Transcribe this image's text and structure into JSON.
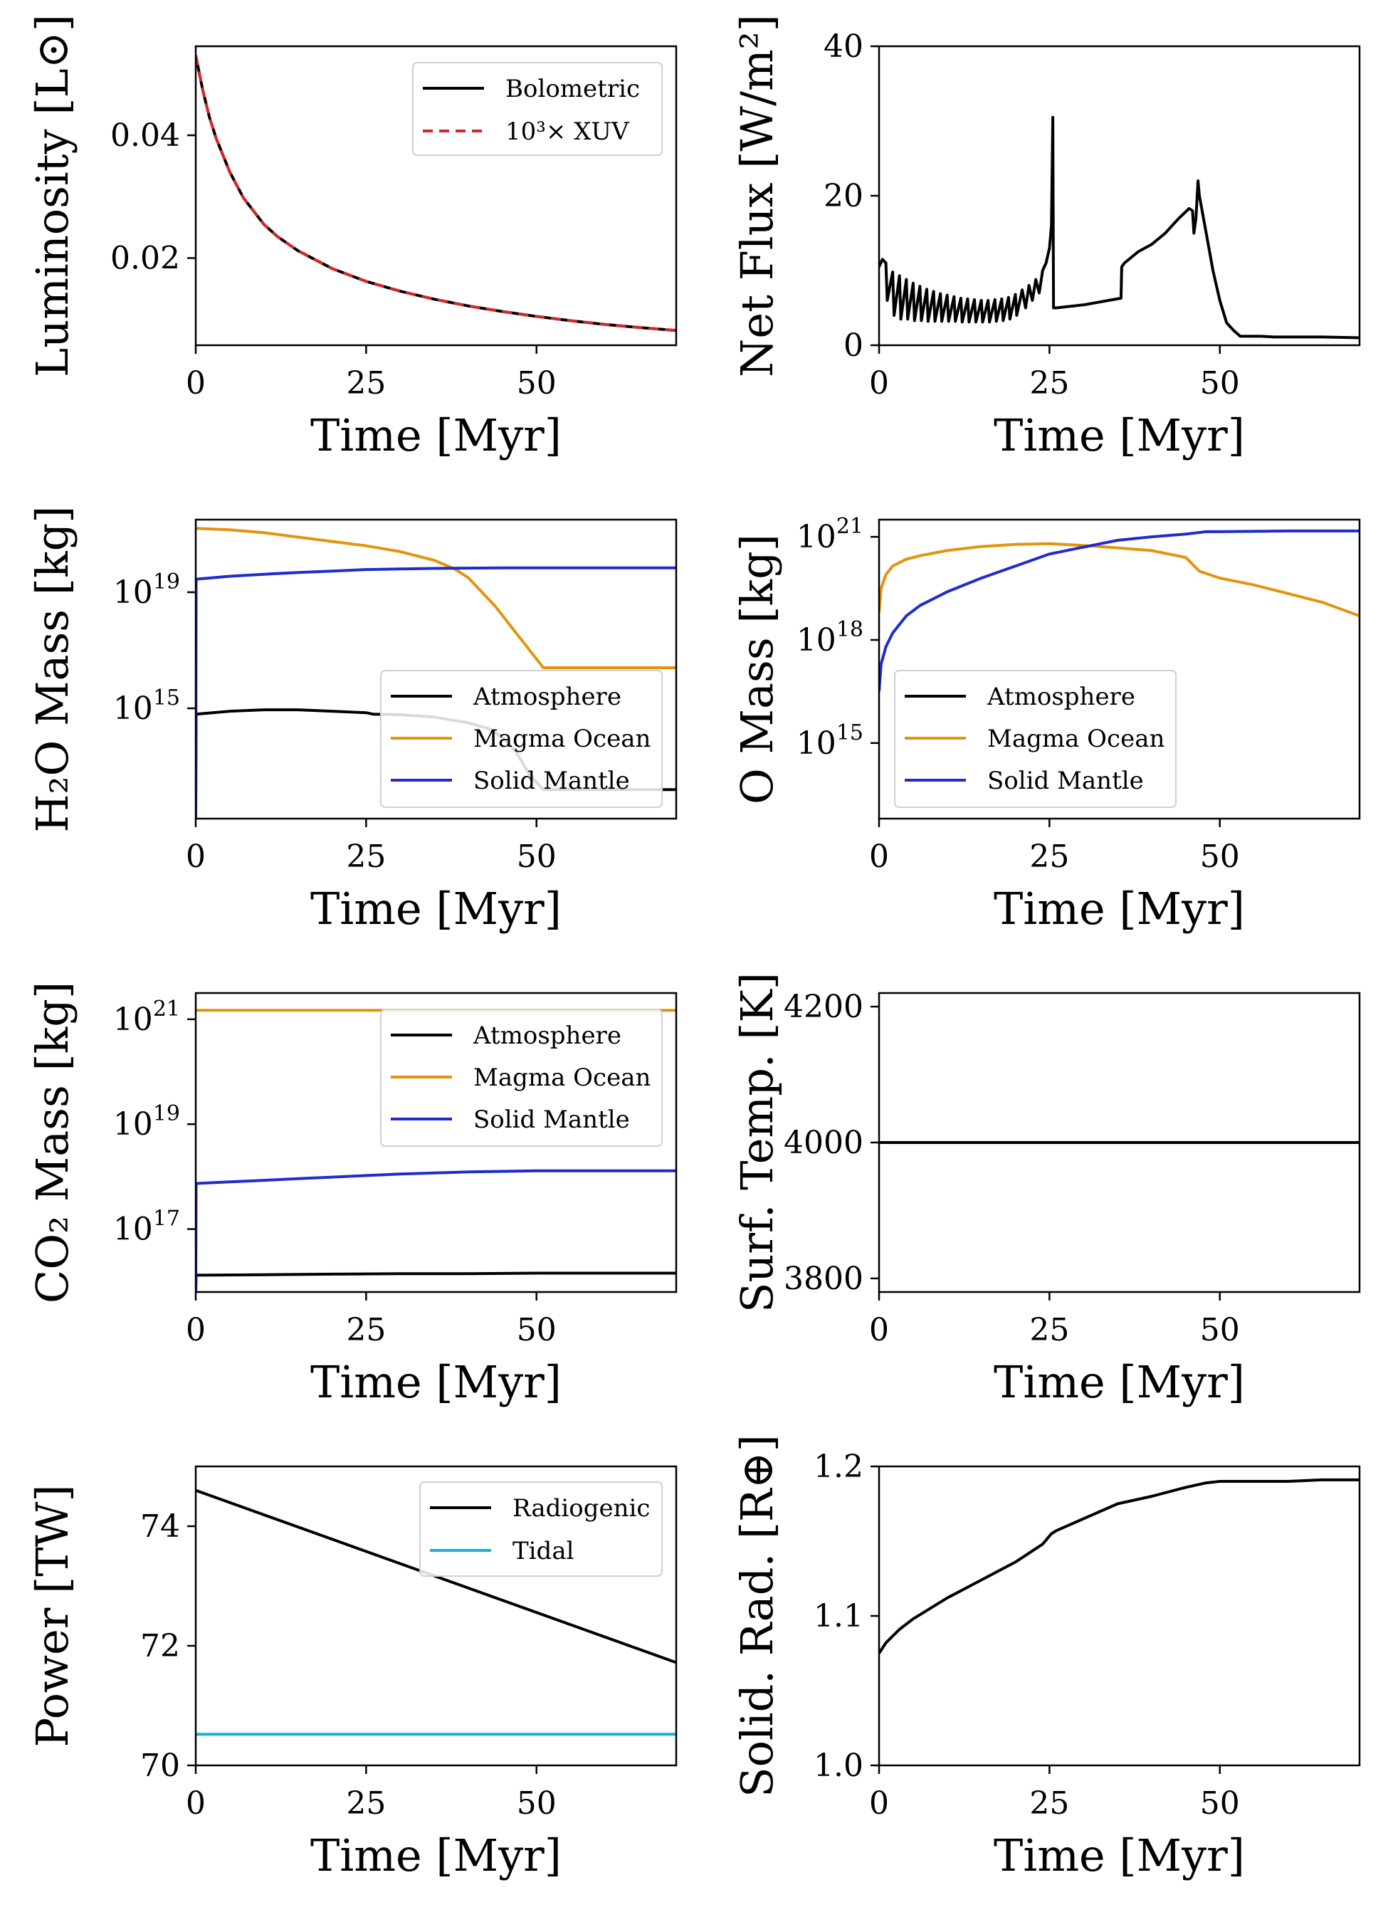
{
  "colors": {
    "black": "#000000",
    "red": "#d62728",
    "orange": "#e3940c",
    "blue": "#1f2ccd",
    "cyan": "#17b3d6"
  },
  "chart_data": [
    {
      "id": "luminosity",
      "type": "line",
      "xlabel": "Time [Myr]",
      "ylabel": "Luminosity [L⊙]",
      "xlim": [
        0,
        70.5
      ],
      "ylim": [
        0.0058,
        0.0545
      ],
      "xticks": [
        {
          "v": 0,
          "label": "0"
        },
        {
          "v": 25,
          "label": "25"
        },
        {
          "v": 50,
          "label": "50"
        }
      ],
      "yticks": [
        {
          "v": 0.02,
          "label": "0.02"
        },
        {
          "v": 0.04,
          "label": "0.04"
        }
      ],
      "legend": "top-right",
      "series": [
        {
          "name": "Bolometric",
          "color": "black",
          "dash": "",
          "width": 4,
          "x": [
            0,
            1,
            2,
            3,
            5,
            7,
            10,
            12,
            15,
            20,
            25,
            30,
            35,
            40,
            45,
            50,
            55,
            60,
            65,
            70.5
          ],
          "y": [
            0.053,
            0.0475,
            0.043,
            0.0395,
            0.034,
            0.0298,
            0.0255,
            0.0235,
            0.0212,
            0.0183,
            0.0162,
            0.0146,
            0.0133,
            0.0122,
            0.0113,
            0.0105,
            0.0098,
            0.0092,
            0.0087,
            0.0082
          ]
        },
        {
          "name": "10³× XUV",
          "color": "red",
          "dash": "14 9",
          "width": 4,
          "x": [
            0,
            1,
            2,
            3,
            5,
            7,
            10,
            12,
            15,
            20,
            25,
            30,
            35,
            40,
            45,
            50,
            55,
            60,
            65,
            70.5
          ],
          "y": [
            0.053,
            0.0475,
            0.043,
            0.0395,
            0.034,
            0.0298,
            0.0255,
            0.0235,
            0.0212,
            0.0183,
            0.0162,
            0.0146,
            0.0133,
            0.0122,
            0.0113,
            0.0105,
            0.0098,
            0.0092,
            0.0087,
            0.0082
          ]
        }
      ]
    },
    {
      "id": "netflux",
      "type": "line",
      "xlabel": "Time [Myr]",
      "ylabel": "Net Flux [W/m²]",
      "xlim": [
        0,
        70.5
      ],
      "ylim": [
        0,
        40
      ],
      "xticks": [
        {
          "v": 0,
          "label": "0"
        },
        {
          "v": 25,
          "label": "25"
        },
        {
          "v": 50,
          "label": "50"
        }
      ],
      "yticks": [
        {
          "v": 0,
          "label": "0"
        },
        {
          "v": 20,
          "label": "20"
        },
        {
          "v": 40,
          "label": "40"
        }
      ],
      "series": [
        {
          "name": "",
          "color": "black",
          "dash": "",
          "width": 4,
          "x": [
            0,
            0.5,
            1,
            1.2,
            2,
            2.2,
            3,
            3.2,
            4,
            4.2,
            5,
            5.2,
            6,
            6.2,
            7,
            7.2,
            8,
            8.2,
            9,
            9.2,
            10,
            10.2,
            11,
            11.2,
            12,
            12.2,
            13,
            13.2,
            14,
            14.2,
            15,
            15.2,
            16,
            16.2,
            17,
            17.2,
            18,
            18.2,
            19,
            19.2,
            20,
            20.2,
            21,
            21.5,
            22,
            22.5,
            23,
            23.5,
            24,
            24.5,
            25.0,
            25.3,
            25.5,
            25.6,
            26,
            30,
            35.5,
            35.6,
            36,
            38,
            40,
            42,
            44,
            45.5,
            46,
            46.2,
            46.5,
            46.8,
            47,
            48,
            49,
            50,
            51,
            52,
            53,
            54,
            56,
            58,
            60,
            65,
            70.5
          ],
          "y": [
            10.5,
            11.5,
            11,
            6,
            9.8,
            4,
            9.3,
            3.5,
            8.8,
            3.5,
            8.3,
            3.3,
            7.9,
            3.3,
            7.5,
            3.2,
            7.2,
            3.2,
            6.9,
            3.2,
            6.7,
            3.2,
            6.5,
            3.2,
            6.3,
            3.1,
            6.2,
            3.1,
            6.1,
            3.1,
            6.0,
            3.1,
            6.0,
            3.1,
            6.1,
            3.2,
            6.2,
            3.3,
            6.4,
            3.5,
            6.8,
            4,
            7.4,
            5,
            8,
            6,
            8.8,
            7,
            10,
            11,
            13,
            16,
            30.5,
            5,
            5,
            5.4,
            6.3,
            10.5,
            11,
            12.5,
            13.5,
            15,
            17,
            18.3,
            18,
            15,
            17,
            22,
            20,
            15,
            10,
            6,
            3,
            2,
            1.2,
            1.2,
            1.2,
            1.1,
            1.1,
            1.1,
            1.0
          ]
        }
      ]
    },
    {
      "id": "h2o",
      "type": "line",
      "xlabel": "Time [Myr]",
      "ylabel": "H₂O Mass [kg]",
      "yscale": "log",
      "xlim": [
        0,
        70.5
      ],
      "ylim": [
        11.2,
        21.5
      ],
      "xticks": [
        {
          "v": 0,
          "label": "0"
        },
        {
          "v": 25,
          "label": "25"
        },
        {
          "v": 50,
          "label": "50"
        }
      ],
      "yticks": [
        {
          "v": 15,
          "label": "10",
          "exp": "15"
        },
        {
          "v": 19,
          "label": "10",
          "exp": "19"
        }
      ],
      "legend": "lower-right",
      "series": [
        {
          "name": "Atmosphere",
          "color": "black",
          "dash": "",
          "width": 4,
          "x": [
            0,
            0.05,
            5,
            10,
            15,
            20,
            25,
            26,
            30,
            35,
            40,
            43,
            45,
            47,
            49,
            51,
            55,
            60,
            65,
            70.5
          ],
          "y": [
            11.2,
            14.8,
            14.9,
            14.95,
            14.95,
            14.9,
            14.85,
            14.8,
            14.78,
            14.7,
            14.5,
            14.3,
            14.0,
            13.5,
            12.7,
            12.2,
            12.2,
            12.2,
            12.2,
            12.2
          ]
        },
        {
          "name": "Magma Ocean",
          "color": "orange",
          "dash": "",
          "width": 4,
          "x": [
            0,
            5,
            10,
            15,
            20,
            25,
            30,
            35,
            38,
            40,
            42,
            44,
            46,
            48,
            50,
            51,
            55,
            60,
            65,
            70.5
          ],
          "y": [
            21.2,
            21.15,
            21.05,
            20.9,
            20.75,
            20.6,
            20.4,
            20.1,
            19.8,
            19.5,
            19.0,
            18.5,
            17.9,
            17.3,
            16.7,
            16.4,
            16.4,
            16.4,
            16.4,
            16.4
          ]
        },
        {
          "name": "Solid Mantle",
          "color": "blue",
          "dash": "",
          "width": 4,
          "x": [
            0,
            0.05,
            5,
            10,
            15,
            20,
            25,
            30,
            35,
            40,
            45,
            50,
            55,
            60,
            65,
            70.5
          ],
          "y": [
            11.2,
            19.45,
            19.55,
            19.62,
            19.68,
            19.73,
            19.78,
            19.8,
            19.82,
            19.83,
            19.84,
            19.84,
            19.84,
            19.84,
            19.84,
            19.84
          ]
        }
      ]
    },
    {
      "id": "omass",
      "type": "line",
      "xlabel": "Time [Myr]",
      "ylabel": "O Mass [kg]",
      "yscale": "log",
      "xlim": [
        0,
        70.5
      ],
      "ylim": [
        12.8,
        21.5
      ],
      "xticks": [
        {
          "v": 0,
          "label": "0"
        },
        {
          "v": 25,
          "label": "25"
        },
        {
          "v": 50,
          "label": "50"
        }
      ],
      "yticks": [
        {
          "v": 15,
          "label": "10",
          "exp": "15"
        },
        {
          "v": 18,
          "label": "10",
          "exp": "18"
        },
        {
          "v": 21,
          "label": "10",
          "exp": "21"
        }
      ],
      "legend": "lower-left",
      "series": [
        {
          "name": "Atmosphere",
          "color": "black",
          "dash": "",
          "width": 4,
          "x": [],
          "y": []
        },
        {
          "name": "Magma Ocean",
          "color": "orange",
          "dash": "",
          "width": 4,
          "x": [
            0,
            0.3,
            1,
            2,
            4,
            6,
            10,
            15,
            20,
            25,
            30,
            35,
            40,
            45,
            47,
            50,
            55,
            60,
            65,
            70.5
          ],
          "y": [
            18.8,
            19.5,
            19.9,
            20.15,
            20.35,
            20.45,
            20.6,
            20.72,
            20.78,
            20.8,
            20.75,
            20.68,
            20.6,
            20.4,
            20.0,
            19.8,
            19.6,
            19.35,
            19.1,
            18.7
          ]
        },
        {
          "name": "Solid Mantle",
          "color": "blue",
          "dash": "",
          "width": 4,
          "x": [
            0,
            0.3,
            1,
            2,
            4,
            6,
            10,
            15,
            20,
            25,
            30,
            35,
            40,
            45,
            48,
            50,
            55,
            60,
            65,
            70.5
          ],
          "y": [
            16.5,
            17.3,
            17.8,
            18.2,
            18.7,
            19.0,
            19.4,
            19.8,
            20.15,
            20.5,
            20.7,
            20.9,
            21.0,
            21.08,
            21.15,
            21.15,
            21.16,
            21.17,
            21.17,
            21.17
          ]
        }
      ]
    },
    {
      "id": "co2",
      "type": "line",
      "xlabel": "Time [Myr]",
      "ylabel": "CO₂ Mass [kg]",
      "yscale": "log",
      "xlim": [
        0,
        70.5
      ],
      "ylim": [
        15.8,
        21.5
      ],
      "xticks": [
        {
          "v": 0,
          "label": "0"
        },
        {
          "v": 25,
          "label": "25"
        },
        {
          "v": 50,
          "label": "50"
        }
      ],
      "yticks": [
        {
          "v": 17,
          "label": "10",
          "exp": "17"
        },
        {
          "v": 19,
          "label": "10",
          "exp": "19"
        },
        {
          "v": 21,
          "label": "10",
          "exp": "21"
        }
      ],
      "legend": "top-right",
      "series": [
        {
          "name": "Atmosphere",
          "color": "black",
          "dash": "",
          "width": 4,
          "x": [
            0,
            0.05,
            10,
            20,
            30,
            40,
            50,
            60,
            70.5
          ],
          "y": [
            15.8,
            16.12,
            16.13,
            16.14,
            16.15,
            16.15,
            16.16,
            16.16,
            16.16
          ]
        },
        {
          "name": "Magma Ocean",
          "color": "orange",
          "dash": "",
          "width": 4,
          "x": [
            0,
            10,
            20,
            30,
            40,
            50,
            60,
            70.5
          ],
          "y": [
            21.17,
            21.17,
            21.17,
            21.17,
            21.17,
            21.17,
            21.17,
            21.17
          ]
        },
        {
          "name": "Solid Mantle",
          "color": "blue",
          "dash": "",
          "width": 4,
          "x": [
            0,
            0.05,
            5,
            10,
            15,
            20,
            25,
            30,
            35,
            40,
            45,
            50,
            55,
            60,
            70.5
          ],
          "y": [
            15.8,
            17.87,
            17.9,
            17.93,
            17.96,
            17.99,
            18.02,
            18.05,
            18.07,
            18.09,
            18.1,
            18.11,
            18.11,
            18.11,
            18.11
          ]
        }
      ]
    },
    {
      "id": "surftemp",
      "type": "line",
      "xlabel": "Time [Myr]",
      "ylabel": "Surf. Temp. [K]",
      "xlim": [
        0,
        70.5
      ],
      "ylim": [
        3780,
        4220
      ],
      "xticks": [
        {
          "v": 0,
          "label": "0"
        },
        {
          "v": 25,
          "label": "25"
        },
        {
          "v": 50,
          "label": "50"
        }
      ],
      "yticks": [
        {
          "v": 3800,
          "label": "3800"
        },
        {
          "v": 4000,
          "label": "4000"
        },
        {
          "v": 4200,
          "label": "4200"
        }
      ],
      "series": [
        {
          "name": "",
          "color": "black",
          "dash": "",
          "width": 4,
          "x": [
            0,
            70.5
          ],
          "y": [
            4000,
            4000
          ]
        }
      ]
    },
    {
      "id": "power",
      "type": "line",
      "xlabel": "Time [Myr]",
      "ylabel": "Power [TW]",
      "xlim": [
        0,
        70.5
      ],
      "ylim": [
        70,
        75
      ],
      "xticks": [
        {
          "v": 0,
          "label": "0"
        },
        {
          "v": 25,
          "label": "25"
        },
        {
          "v": 50,
          "label": "50"
        }
      ],
      "yticks": [
        {
          "v": 70,
          "label": "70"
        },
        {
          "v": 72,
          "label": "72"
        },
        {
          "v": 74,
          "label": "74"
        }
      ],
      "legend": "top-right",
      "series": [
        {
          "name": "Radiogenic",
          "color": "black",
          "dash": "",
          "width": 4,
          "x": [
            0,
            70.5
          ],
          "y": [
            74.6,
            71.72
          ]
        },
        {
          "name": "Tidal",
          "color": "cyan",
          "dash": "",
          "width": 4,
          "x": [
            0,
            70.5
          ],
          "y": [
            70.52,
            70.52
          ]
        }
      ]
    },
    {
      "id": "solidrad",
      "type": "line",
      "xlabel": "Time [Myr]",
      "ylabel": "Solid. Rad. [R⊕]",
      "xlim": [
        0,
        70.5
      ],
      "ylim": [
        1.0,
        1.2
      ],
      "xticks": [
        {
          "v": 0,
          "label": "0"
        },
        {
          "v": 25,
          "label": "25"
        },
        {
          "v": 50,
          "label": "50"
        }
      ],
      "yticks": [
        {
          "v": 1.0,
          "label": "1.0"
        },
        {
          "v": 1.1,
          "label": "1.1"
        },
        {
          "v": 1.2,
          "label": "1.2"
        }
      ],
      "series": [
        {
          "name": "",
          "color": "black",
          "dash": "",
          "width": 4,
          "x": [
            0,
            1,
            3,
            5,
            10,
            15,
            20,
            24,
            25.3,
            26,
            30,
            35,
            40,
            45,
            48,
            50,
            55,
            60,
            65,
            70.5
          ],
          "y": [
            1.075,
            1.082,
            1.091,
            1.098,
            1.112,
            1.124,
            1.136,
            1.148,
            1.155,
            1.157,
            1.165,
            1.175,
            1.18,
            1.186,
            1.189,
            1.19,
            1.19,
            1.19,
            1.191,
            1.191
          ]
        }
      ]
    }
  ]
}
